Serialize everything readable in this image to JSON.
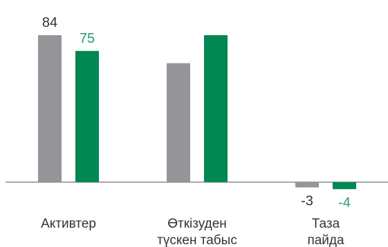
{
  "chart_data": {
    "type": "bar",
    "categories": [
      [
        "Активтер"
      ],
      [
        "Өткізуден",
        "түскен табыс"
      ],
      [
        "Таза",
        "пайда"
      ]
    ],
    "series": [
      {
        "color": "#939598",
        "values": [
          84,
          68,
          3
        ],
        "labels": [
          "84",
          "",
          "-3"
        ],
        "signs": [
          1,
          1,
          -1
        ]
      },
      {
        "color": "#008752",
        "values": [
          75,
          84,
          4
        ],
        "labels": [
          "75",
          "",
          "-4"
        ],
        "signs": [
          1,
          1,
          -1
        ]
      }
    ],
    "ylim": [
      -4.5,
      92
    ],
    "grid": false,
    "legend": "none",
    "label_colors": [
      "#333333",
      "#2a9b6b"
    ]
  }
}
